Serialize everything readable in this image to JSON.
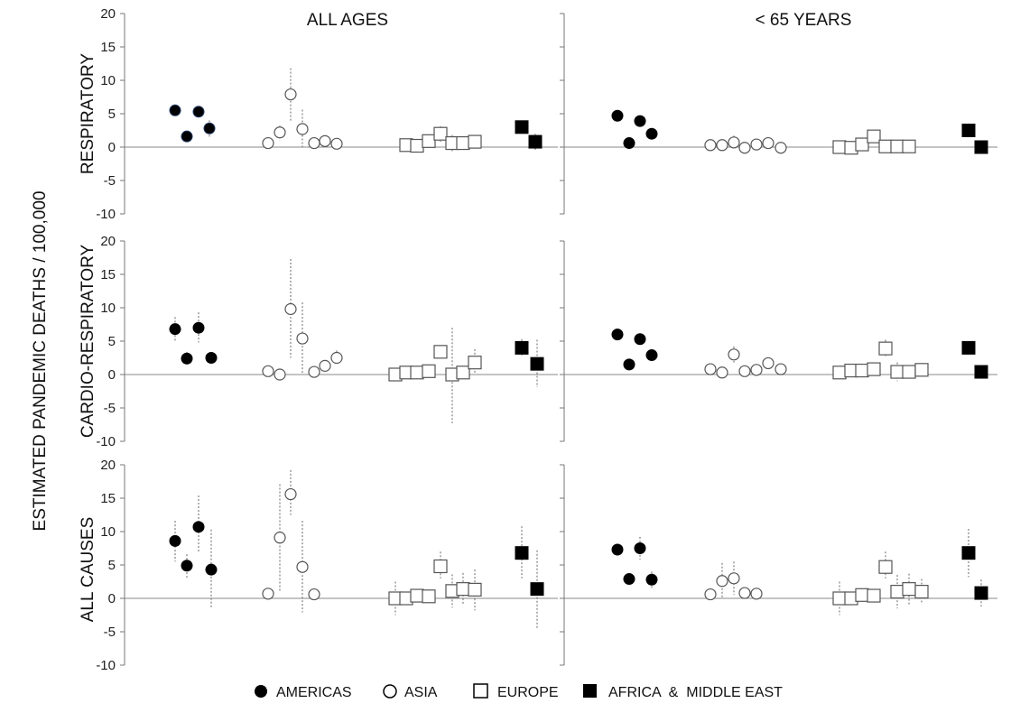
{
  "chart_data": {
    "type": "scatter",
    "ylabel": "ESTIMATED PANDEMIC DEATHS / 100,000",
    "ylim": [
      -10,
      20
    ],
    "yticks": [
      20,
      15,
      10,
      5,
      0,
      -5,
      -10
    ],
    "columns": [
      "ALL AGES",
      "< 65 YEARS"
    ],
    "rows": [
      "RESPIRATORY",
      "CARDIO-RESPIRATORY",
      "ALL CAUSES"
    ],
    "legend": [
      {
        "key": "americas",
        "label": "AMERICAS",
        "marker": "filled-circle"
      },
      {
        "key": "asia",
        "label": "ASIA",
        "marker": "open-circle"
      },
      {
        "key": "europe",
        "label": "EUROPE",
        "marker": "open-square"
      },
      {
        "key": "africa",
        "label": "AFRICA  &  MIDDLE EAST",
        "marker": "filled-square"
      }
    ],
    "panels": [
      {
        "row": "RESPIRATORY",
        "column": "ALL AGES",
        "points": {
          "americas": [
            {
              "y": 5.5,
              "lo": 5,
              "hi": 6
            },
            {
              "y": 1.6,
              "lo": 1,
              "hi": 2.2
            },
            {
              "y": 5.3,
              "lo": 4.8,
              "hi": 5.8
            },
            {
              "y": 2.8,
              "lo": 1.5,
              "hi": 4
            }
          ],
          "asia": [
            {
              "y": 0.6,
              "lo": 0.3,
              "hi": 0.9
            },
            {
              "y": 2.2,
              "lo": 1,
              "hi": 3.2
            },
            {
              "y": 7.9,
              "lo": 3.8,
              "hi": 11.8
            },
            {
              "y": 2.7,
              "lo": 0,
              "hi": 5.6
            },
            {
              "y": 0.6,
              "lo": 0.3,
              "hi": 0.9
            },
            {
              "y": 0.9,
              "lo": 0.6,
              "hi": 1.2
            },
            {
              "y": 0.5,
              "lo": 0.2,
              "hi": 0.8
            }
          ],
          "europe": [
            {
              "y": 0.3,
              "lo": 0,
              "hi": 0.6
            },
            {
              "y": 0.2,
              "lo": -0.2,
              "hi": 0.6
            },
            {
              "y": 0.9,
              "lo": 0.4,
              "hi": 1.4
            },
            {
              "y": 2.0,
              "lo": 0.8,
              "hi": 3.1
            },
            {
              "y": 0.6,
              "lo": -0.6,
              "hi": 1.8
            },
            {
              "y": 0.6,
              "lo": -0.3,
              "hi": 1.4
            },
            {
              "y": 0.8,
              "lo": 0.2,
              "hi": 1.4
            }
          ],
          "africa": [
            {
              "y": 3.0,
              "lo": 2.5,
              "hi": 3.5
            },
            {
              "y": 0.8,
              "lo": -0.4,
              "hi": 2
            }
          ]
        }
      },
      {
        "row": "RESPIRATORY",
        "column": "< 65 YEARS",
        "points": {
          "americas": [
            {
              "y": 4.7,
              "lo": 4.3,
              "hi": 5.1
            },
            {
              "y": 0.6,
              "lo": 0.3,
              "hi": 0.9
            },
            {
              "y": 3.9,
              "lo": 3.5,
              "hi": 4.3
            },
            {
              "y": 2.0,
              "lo": 1.5,
              "hi": 2.5
            }
          ],
          "asia": [
            {
              "y": 0.3,
              "lo": 0,
              "hi": 0.6
            },
            {
              "y": 0.3,
              "lo": 0,
              "hi": 0.6
            },
            {
              "y": 0.7,
              "lo": -0.3,
              "hi": 1.7
            },
            {
              "y": -0.1,
              "lo": -0.4,
              "hi": 0.2
            },
            {
              "y": 0.4,
              "lo": 0.1,
              "hi": 0.7
            },
            {
              "y": 0.6,
              "lo": 0.3,
              "hi": 0.9
            },
            {
              "y": -0.1,
              "lo": -0.4,
              "hi": 0.2
            }
          ],
          "europe": [
            {
              "y": 0.0,
              "lo": -0.3,
              "hi": 0.3
            },
            {
              "y": -0.1,
              "lo": -0.4,
              "hi": 0.2
            },
            {
              "y": 0.4,
              "lo": -0.2,
              "hi": 1
            },
            {
              "y": 1.6,
              "lo": 0.6,
              "hi": 2.6
            },
            {
              "y": 0.1,
              "lo": -0.2,
              "hi": 0.4
            },
            {
              "y": 0.1,
              "lo": -0.2,
              "hi": 0.4
            },
            {
              "y": 0.1,
              "lo": -0.2,
              "hi": 0.4
            }
          ],
          "africa": [
            {
              "y": 2.5,
              "lo": 2,
              "hi": 3
            },
            {
              "y": 0.0,
              "lo": -0.4,
              "hi": 0.4
            }
          ]
        }
      },
      {
        "row": "CARDIO-RESPIRATORY",
        "column": "ALL AGES",
        "points": {
          "americas": [
            {
              "y": 6.8,
              "lo": 4.9,
              "hi": 8.6
            },
            {
              "y": 2.4,
              "lo": 1.3,
              "hi": 3.4
            },
            {
              "y": 7.0,
              "lo": 4.8,
              "hi": 9.3
            },
            {
              "y": 2.5,
              "lo": 2.2,
              "hi": 2.8
            }
          ],
          "asia": [
            {
              "y": 0.5,
              "lo": 0.2,
              "hi": 0.8
            },
            {
              "y": 0.0,
              "lo": -0.3,
              "hi": 0.3
            },
            {
              "y": 9.8,
              "lo": 2.5,
              "hi": 17.3
            },
            {
              "y": 5.4,
              "lo": 0,
              "hi": 10.8
            },
            {
              "y": 0.4,
              "lo": 0.1,
              "hi": 0.7
            },
            {
              "y": 1.3,
              "lo": 0.8,
              "hi": 1.8
            },
            {
              "y": 2.5,
              "lo": 1.5,
              "hi": 3.6
            }
          ],
          "europe": [
            {
              "y": 0.0,
              "lo": -0.3,
              "hi": 0.3
            },
            {
              "y": 0.3,
              "lo": 0,
              "hi": 0.6
            },
            {
              "y": 0.3,
              "lo": 0,
              "hi": 0.6
            },
            {
              "y": 0.5,
              "lo": 0,
              "hi": 1
            },
            {
              "y": 3.4,
              "lo": 2.5,
              "hi": 4.3
            },
            {
              "y": 0.0,
              "lo": -7.3,
              "hi": 7
            },
            {
              "y": 0.3,
              "lo": -0.2,
              "hi": 0.8
            },
            {
              "y": 1.8,
              "lo": 0,
              "hi": 3.8
            }
          ],
          "africa": [
            {
              "y": 4.0,
              "lo": 2.8,
              "hi": 5.3
            },
            {
              "y": 1.6,
              "lo": -1.9,
              "hi": 5.2
            }
          ]
        }
      },
      {
        "row": "CARDIO-RESPIRATORY",
        "column": "< 65 YEARS",
        "points": {
          "americas": [
            {
              "y": 6.0,
              "lo": 5.6,
              "hi": 6.4
            },
            {
              "y": 1.5,
              "lo": 1.1,
              "hi": 1.9
            },
            {
              "y": 5.3,
              "lo": 4.8,
              "hi": 5.8
            },
            {
              "y": 2.9,
              "lo": 2.5,
              "hi": 3.3
            }
          ],
          "asia": [
            {
              "y": 0.8,
              "lo": 0.5,
              "hi": 1.1
            },
            {
              "y": 0.3,
              "lo": 0,
              "hi": 0.6
            },
            {
              "y": 3.0,
              "lo": 1.8,
              "hi": 4.2
            },
            {
              "y": 0.5,
              "lo": 0.2,
              "hi": 0.8
            },
            {
              "y": 0.7,
              "lo": 0.3,
              "hi": 1.1
            },
            {
              "y": 1.7,
              "lo": 1.2,
              "hi": 2.2
            },
            {
              "y": 0.8,
              "lo": 0.5,
              "hi": 1.1
            }
          ],
          "europe": [
            {
              "y": 0.3,
              "lo": 0,
              "hi": 0.6
            },
            {
              "y": 0.6,
              "lo": 0.3,
              "hi": 0.9
            },
            {
              "y": 0.6,
              "lo": 0.3,
              "hi": 0.9
            },
            {
              "y": 0.8,
              "lo": 0.4,
              "hi": 1.2
            },
            {
              "y": 3.9,
              "lo": 2.6,
              "hi": 5.2
            },
            {
              "y": 0.4,
              "lo": -1,
              "hi": 1.8
            },
            {
              "y": 0.4,
              "lo": 0,
              "hi": 0.8
            },
            {
              "y": 0.7,
              "lo": 0.3,
              "hi": 1.1
            }
          ],
          "africa": [
            {
              "y": 4.0,
              "lo": 3.6,
              "hi": 4.4
            },
            {
              "y": 0.4,
              "lo": 0.1,
              "hi": 0.7
            }
          ]
        }
      },
      {
        "row": "ALL CAUSES",
        "column": "ALL AGES",
        "points": {
          "americas": [
            {
              "y": 8.6,
              "lo": 5.5,
              "hi": 11.6
            },
            {
              "y": 4.9,
              "lo": 2.9,
              "hi": 6.6
            },
            {
              "y": 10.7,
              "lo": 7,
              "hi": 15.4
            },
            {
              "y": 4.3,
              "lo": -1.5,
              "hi": 10.3
            }
          ],
          "asia": [
            {
              "y": 0.7,
              "lo": 0.4,
              "hi": 1
            },
            {
              "y": 9.1,
              "lo": 1.1,
              "hi": 17.1
            },
            {
              "y": 15.6,
              "lo": 12.5,
              "hi": 19.2
            },
            {
              "y": 4.7,
              "lo": -2.1,
              "hi": 11.6
            },
            {
              "y": 0.6,
              "lo": 0.3,
              "hi": 0.9
            }
          ],
          "europe": [
            {
              "y": 0.0,
              "lo": -2.5,
              "hi": 2.5
            },
            {
              "y": 0.0,
              "lo": -0.6,
              "hi": 0.6
            },
            {
              "y": 0.4,
              "lo": 0,
              "hi": 0.8
            },
            {
              "y": 0.3,
              "lo": 0,
              "hi": 0.6
            },
            {
              "y": 4.8,
              "lo": 3,
              "hi": 7
            },
            {
              "y": 1.1,
              "lo": -1.4,
              "hi": 3.6
            },
            {
              "y": 1.4,
              "lo": -1,
              "hi": 3.8
            },
            {
              "y": 1.3,
              "lo": -1.8,
              "hi": 4.3
            }
          ],
          "africa": [
            {
              "y": 6.8,
              "lo": 3,
              "hi": 10.8
            },
            {
              "y": 1.4,
              "lo": -4.5,
              "hi": 7.2
            }
          ]
        }
      },
      {
        "row": "ALL CAUSES",
        "column": "< 65 YEARS",
        "points": {
          "americas": [
            {
              "y": 7.3,
              "lo": 6.9,
              "hi": 7.7
            },
            {
              "y": 2.9,
              "lo": 2.5,
              "hi": 3.3
            },
            {
              "y": 7.5,
              "lo": 5.8,
              "hi": 9.2
            },
            {
              "y": 2.8,
              "lo": 1.5,
              "hi": 4
            }
          ],
          "asia": [
            {
              "y": 0.6,
              "lo": 0.3,
              "hi": 0.9
            },
            {
              "y": 2.6,
              "lo": 0,
              "hi": 5.3
            },
            {
              "y": 3.0,
              "lo": 0.5,
              "hi": 5.5
            },
            {
              "y": 0.8,
              "lo": 0.5,
              "hi": 1.1
            },
            {
              "y": 0.7,
              "lo": 0.4,
              "hi": 1
            }
          ],
          "europe": [
            {
              "y": 0.0,
              "lo": -2.5,
              "hi": 2.5
            },
            {
              "y": 0.0,
              "lo": -0.6,
              "hi": 0.6
            },
            {
              "y": 0.5,
              "lo": 0.1,
              "hi": 0.9
            },
            {
              "y": 0.4,
              "lo": 0,
              "hi": 0.8
            },
            {
              "y": 4.7,
              "lo": 3,
              "hi": 7
            },
            {
              "y": 1.0,
              "lo": -1.5,
              "hi": 3.5
            },
            {
              "y": 1.4,
              "lo": -0.9,
              "hi": 3.7
            },
            {
              "y": 1.0,
              "lo": -0.9,
              "hi": 2.9
            }
          ],
          "africa": [
            {
              "y": 6.8,
              "lo": 3.2,
              "hi": 10.4
            },
            {
              "y": 0.8,
              "lo": -1.2,
              "hi": 2.8
            }
          ]
        }
      }
    ]
  }
}
